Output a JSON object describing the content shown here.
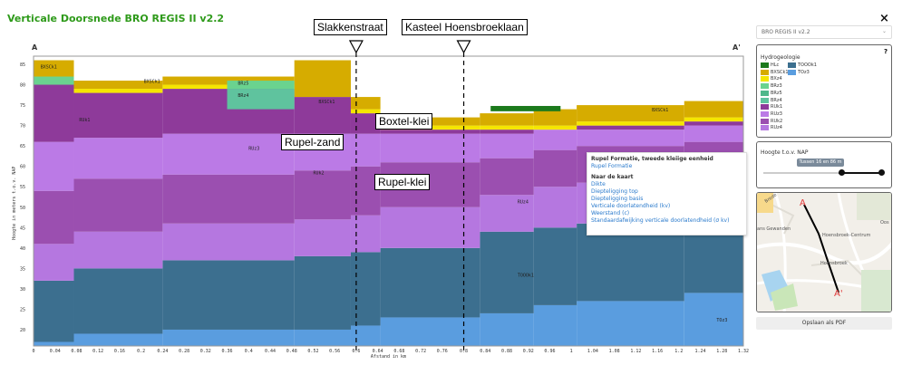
{
  "title": "Verticale Doorsnede BRO REGIS II v2.2",
  "section": {
    "start": "A",
    "end": "A'"
  },
  "annotations": {
    "street1": "Slakkenstraat",
    "street2": "Kasteel Hoensbroeklaan",
    "boxtel": "Boxtel-klei",
    "rupel_zand": "Rupel-zand",
    "rupel_klei": "Rupel-klei"
  },
  "chart_data": {
    "type": "area",
    "xlabel": "Afstand in km",
    "ylabel": "Hoogte in meters t.o.v. NAP",
    "x_ticks": [
      "0",
      "0.04",
      "0.08",
      "0.12",
      "0.16",
      "0.2",
      "0.24",
      "0.28",
      "0.32",
      "0.36",
      "0.4",
      "0.44",
      "0.48",
      "0.52",
      "0.56",
      "0.6",
      "0.64",
      "0.68",
      "0.72",
      "0.76",
      "0.8",
      "0.84",
      "0.88",
      "0.92",
      "0.96",
      "1",
      "1.04",
      "1.08",
      "1.12",
      "1.16",
      "1.2",
      "1.24",
      "1.28",
      "1.32"
    ],
    "y_ticks": [
      20,
      25,
      30,
      35,
      40,
      45,
      50,
      55,
      60,
      65,
      70,
      75,
      80,
      85
    ],
    "xlim": [
      0,
      1.32
    ],
    "ylim": [
      16,
      87
    ],
    "layer_labels": [
      "BXSCk1",
      "BXSCk1",
      "BRz4",
      "BRz5",
      "BXSCk1",
      "BXSCk1",
      "RUk1",
      "RUz3",
      "RUk2",
      "RUz4",
      "TOOOk1",
      "TOz3"
    ],
    "legend_title": "Hydrogeologie",
    "legend": [
      {
        "code": "HLc",
        "color": "#1c7a1c"
      },
      {
        "code": "BXSCk1",
        "color": "#d6ac00"
      },
      {
        "code": "BXz4",
        "color": "#f5e600"
      },
      {
        "code": "BRz3",
        "color": "#6ad38f"
      },
      {
        "code": "BRz5",
        "color": "#4fb88b"
      },
      {
        "code": "BRz4",
        "color": "#5fc39e"
      },
      {
        "code": "RUk1",
        "color": "#8e3a9a"
      },
      {
        "code": "RUz3",
        "color": "#bb7ae6"
      },
      {
        "code": "RUk2",
        "color": "#9b4fb0"
      },
      {
        "code": "RUz4",
        "color": "#b577e0"
      },
      {
        "code": "TOOOk1",
        "color": "#3c6f8f"
      },
      {
        "code": "TOz3",
        "color": "#5a9ddf"
      }
    ],
    "colors": {
      "HLc": "#1c7a1c",
      "BXSCk1": "#d6ac00",
      "BXz4": "#f5e600",
      "BRz3": "#6ad38f",
      "BRz4": "#5fc39e",
      "RUk1": "#8e3a9a",
      "RUz3": "#bb7ae6",
      "RUk2": "#9b4fb0",
      "RUz4": "#b577e0",
      "TOOOk1": "#3c6f8f",
      "TOz3": "#5a9ddf"
    }
  },
  "popup": {
    "heading": "Rupel Formatie, tweede kleiige eenheid",
    "link": "Rupel Formatie",
    "sub": "Naar de kaart",
    "items": [
      "Dikte",
      "Diepteligging top",
      "Diepteligging basis",
      "Verticale doorlatendheid (kv)",
      "Weerstand (c)",
      "Standaardafwijking verticale doorlatendheid (σ kv)"
    ]
  },
  "sidebar": {
    "close": "×",
    "model_select": "BRO REGIS II v2.2",
    "help": "?",
    "height_title": "Hoogte t.o.v. NAP",
    "height_value": "Tussen 16 en 86 m",
    "pdf_button": "Opslaan als PDF"
  },
  "map": {
    "labels": [
      "Brede",
      "Oos",
      "ans Gewanden",
      "Hoensbroek-Centrum",
      "Hoensbroek",
      "A",
      "A'"
    ]
  }
}
